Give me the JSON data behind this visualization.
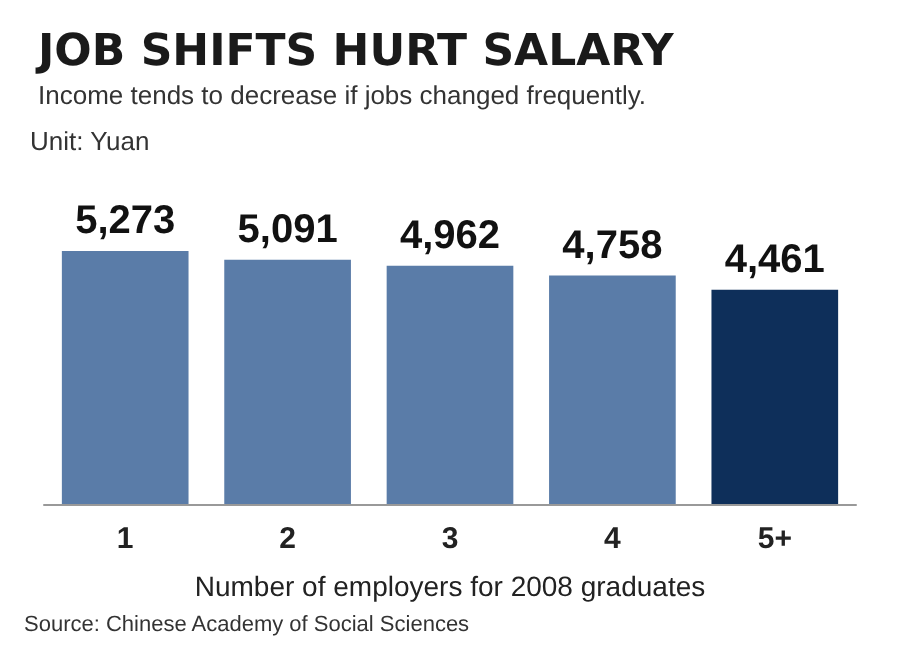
{
  "chart_data": {
    "type": "bar",
    "title": "JOB SHIFTS HURT SALARY",
    "subtitle": "Income tends to decrease if jobs changed frequently.",
    "annotations": [
      "Unit: Yuan",
      "Source: Chinese Academy of Social Sciences"
    ],
    "xlabel": "Number of employers for 2008 graduates",
    "categories": [
      "1",
      "2",
      "3",
      "4",
      "5+"
    ],
    "values": [
      5273,
      5091,
      4962,
      4758,
      4461
    ],
    "value_labels": [
      "5,273",
      "5,091",
      "4,962",
      "4,758",
      "4,461"
    ],
    "colors": [
      "#5a7ca8",
      "#5a7ca8",
      "#5a7ca8",
      "#5a7ca8",
      "#0e2f5a"
    ],
    "tick_labels": "x"
  }
}
